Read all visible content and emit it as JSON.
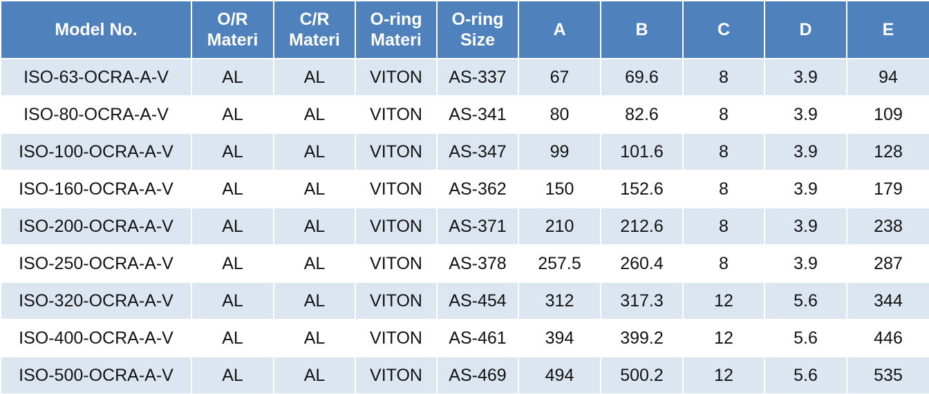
{
  "table": {
    "header": [
      [
        "Model No."
      ],
      [
        "O/R",
        "Materi"
      ],
      [
        "C/R",
        "Materi"
      ],
      [
        "O-ring",
        "Materi"
      ],
      [
        "O-ring",
        "Size"
      ],
      [
        "A"
      ],
      [
        "B"
      ],
      [
        "C"
      ],
      [
        "D"
      ],
      [
        "E"
      ]
    ],
    "rows": [
      [
        "ISO-63-OCRA-A-V",
        "AL",
        "AL",
        "VITON",
        "AS-337",
        67,
        69.6,
        8,
        3.9,
        94
      ],
      [
        "ISO-80-OCRA-A-V",
        "AL",
        "AL",
        "VITON",
        "AS-341",
        80,
        82.6,
        8,
        3.9,
        109
      ],
      [
        "ISO-100-OCRA-A-V",
        "AL",
        "AL",
        "VITON",
        "AS-347",
        99,
        101.6,
        8,
        3.9,
        128
      ],
      [
        "ISO-160-OCRA-A-V",
        "AL",
        "AL",
        "VITON",
        "AS-362",
        150,
        152.6,
        8,
        3.9,
        179
      ],
      [
        "ISO-200-OCRA-A-V",
        "AL",
        "AL",
        "VITON",
        "AS-371",
        210,
        212.6,
        8,
        3.9,
        238
      ],
      [
        "ISO-250-OCRA-A-V",
        "AL",
        "AL",
        "VITON",
        "AS-378",
        257.5,
        260.4,
        8,
        3.9,
        287
      ],
      [
        "ISO-320-OCRA-A-V",
        "AL",
        "AL",
        "VITON",
        "AS-454",
        312,
        317.3,
        12,
        5.6,
        344
      ],
      [
        "ISO-400-OCRA-A-V",
        "AL",
        "AL",
        "VITON",
        "AS-461",
        394,
        399.2,
        12,
        5.6,
        446
      ],
      [
        "ISO-500-OCRA-A-V",
        "AL",
        "AL",
        "VITON",
        "AS-469",
        494,
        500.2,
        12,
        5.6,
        535
      ]
    ]
  }
}
